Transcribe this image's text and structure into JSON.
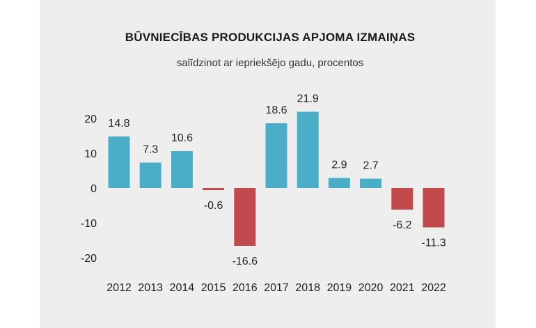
{
  "chart_data": {
    "type": "bar",
    "title": "BŪVNIECĪBAS PRODUKCIJAS APJOMA IZMAIŅAS",
    "subtitle": "salīdzinot ar iepriekšējo gadu, procentos",
    "categories": [
      "2012",
      "2013",
      "2014",
      "2015",
      "2016",
      "2017",
      "2018",
      "2019",
      "2020",
      "2021",
      "2022"
    ],
    "values": [
      14.8,
      7.3,
      10.6,
      -0.6,
      -16.6,
      18.6,
      21.9,
      2.9,
      2.7,
      -6.2,
      -11.3
    ],
    "data_labels": [
      "14.8",
      "7.3",
      "10.6",
      "-0.6",
      "-16.6",
      "18.6",
      "21.9",
      "2.9",
      "2.7",
      "-6.2",
      "-11.3"
    ],
    "yticks": [
      20,
      10,
      0,
      -10,
      -20
    ],
    "ytick_labels": [
      "20",
      "10",
      "0",
      "-10",
      "-20"
    ],
    "ylim": [
      -20,
      22
    ],
    "grid": false,
    "colors": {
      "positive": "#4aaec8",
      "negative": "#c24a4d"
    }
  }
}
